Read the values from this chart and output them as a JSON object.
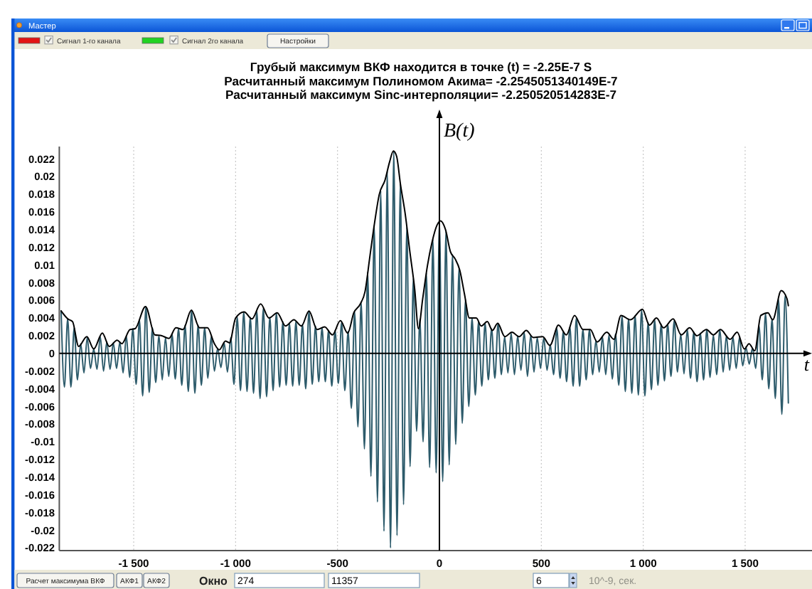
{
  "chart_data": {
    "type": "line",
    "title": "Грубый максимум ВКФ находится в точке (t) = -2.25E-7 S",
    "subtitle": "Расчитанный максимум Полиномом Акима= -2.2545051340149E-7\nРасчитанный максимум Sinc-интерполяции= -2.250520514283E-7",
    "xlabel": "t",
    "ylabel": "B(t)",
    "annotations": [
      "Мастер",
      "Сигнал 1-го канала",
      "Сигнал 2го канала",
      "Настройки",
      "Расчет максимума ВКФ",
      "АКФ1",
      "АКФ2",
      "Окно",
      "274",
      "11357",
      "6",
      "10^-9, сек."
    ],
    "x": [
      -1856,
      -1840,
      -1824,
      -1808,
      -1792,
      -1776,
      -1760,
      -1744,
      -1728,
      -1712,
      -1696,
      -1680,
      -1664,
      -1648,
      -1632,
      -1616,
      -1600,
      -1584,
      -1568,
      -1552,
      -1536,
      -1520,
      -1504,
      -1488,
      -1472,
      -1456,
      -1440,
      -1424,
      -1408,
      -1392,
      -1376,
      -1360,
      -1344,
      -1328,
      -1312,
      -1296,
      -1280,
      -1264,
      -1248,
      -1232,
      -1216,
      -1200,
      -1184,
      -1168,
      -1152,
      -1136,
      -1120,
      -1104,
      -1088,
      -1072,
      -1056,
      -1040,
      -1024,
      -1008,
      -992,
      -976,
      -960,
      -944,
      -928,
      -912,
      -896,
      -880,
      -864,
      -848,
      -832,
      -816,
      -800,
      -784,
      -768,
      -752,
      -736,
      -720,
      -704,
      -688,
      -672,
      -656,
      -640,
      -624,
      -608,
      -592,
      -576,
      -560,
      -544,
      -528,
      -512,
      -496,
      -480,
      -464,
      -448,
      -432,
      -416,
      -400,
      -384,
      -368,
      -352,
      -336,
      -320,
      -304,
      -288,
      -272,
      -256,
      -240,
      -224,
      -208,
      -192,
      -176,
      -160,
      -144,
      -128,
      -112,
      -96,
      -80,
      -64,
      -48,
      -32,
      -16,
      0,
      16,
      32,
      48,
      64,
      80,
      96,
      112,
      128,
      144,
      160,
      176,
      192,
      208,
      224,
      240,
      256,
      272,
      288,
      304,
      320,
      336,
      352,
      368,
      384,
      400,
      416,
      432,
      448,
      464,
      480,
      496,
      512,
      528,
      544,
      560,
      576,
      592,
      608,
      624,
      640,
      656,
      672,
      688,
      704,
      720,
      736,
      752,
      768,
      784,
      800,
      816,
      832,
      848,
      864,
      880,
      896,
      912,
      928,
      944,
      960,
      976,
      992,
      1008,
      1024,
      1040,
      1056,
      1072,
      1088,
      1104,
      1120,
      1136,
      1152,
      1168,
      1184,
      1200,
      1216,
      1232,
      1248,
      1264,
      1280,
      1296,
      1312,
      1328,
      1344,
      1360,
      1376,
      1392,
      1408,
      1424,
      1440,
      1456,
      1472,
      1488,
      1504,
      1520,
      1536,
      1552,
      1568,
      1584,
      1600,
      1616,
      1632,
      1648,
      1664,
      1680,
      1696,
      1712
    ],
    "series": [
      {
        "color": "#2d5b6b",
        "values": [
          0.0048,
          -0.0038,
          0.0039,
          -0.0038,
          0.0029,
          -0.003,
          0.0011,
          -0.0022,
          0.0018,
          -0.0017,
          0.0005,
          -0.0018,
          0.0019,
          -0.002,
          0.0013,
          -0.0018,
          0.0012,
          -0.0017,
          0.0013,
          -0.0022,
          0.002,
          -0.0027,
          0.0028,
          -0.0035,
          0.0038,
          -0.0048,
          0.0053,
          -0.0044,
          0.0029,
          -0.0033,
          0.002,
          -0.003,
          0.0018,
          -0.0026,
          0.0022,
          -0.0029,
          0.0028,
          -0.0036,
          0.0032,
          -0.0043,
          0.0049,
          -0.0045,
          0.0032,
          -0.0036,
          0.0029,
          -0.0028,
          0.0019,
          -0.002,
          0.0006,
          -0.0016,
          0.0012,
          -0.0021,
          0.0018,
          -0.0035,
          0.0041,
          -0.0042,
          0.0047,
          -0.0043,
          0.0041,
          -0.0045,
          0.0048,
          -0.0051,
          0.0051,
          -0.0049,
          0.0041,
          -0.0042,
          0.0046,
          -0.0038,
          0.0036,
          -0.0036,
          0.0034,
          -0.0037,
          0.0036,
          -0.0036,
          0.0033,
          -0.004,
          0.0048,
          -0.0035,
          0.0031,
          -0.0032,
          0.0029,
          -0.0032,
          0.0026,
          -0.0037,
          0.0026,
          -0.0034,
          0.0035,
          -0.0042,
          0.0025,
          -0.0062,
          0.0047,
          -0.0083,
          0.0058,
          -0.0108,
          0.0092,
          -0.0139,
          0.0145,
          -0.0168,
          0.0184,
          -0.0201,
          0.0206,
          -0.022,
          0.0229,
          -0.0206,
          0.0192,
          -0.0171,
          0.0143,
          -0.0128,
          0.0085,
          -0.0088,
          0.0039,
          -0.01,
          0.0091,
          -0.0129,
          0.0129,
          -0.0135,
          0.0149,
          -0.0145,
          0.0138,
          -0.0126,
          0.0112,
          -0.0103,
          0.0096,
          -0.0079,
          0.0061,
          -0.006,
          0.004,
          -0.0047,
          0.0036,
          -0.0037,
          0.0034,
          -0.003,
          0.0028,
          -0.0028,
          0.0034,
          -0.0024,
          0.0019,
          -0.0022,
          0.0023,
          -0.0024,
          0.002,
          -0.0019,
          0.0024,
          -0.0026,
          0.0021,
          -0.0021,
          0.0018,
          -0.0017,
          0.0018,
          -0.0019,
          0.001,
          -0.0024,
          0.0028,
          -0.0028,
          0.0025,
          -0.0032,
          0.003,
          -0.0037,
          0.004,
          -0.0037,
          0.0027,
          -0.003,
          0.0027,
          -0.0024,
          0.0015,
          -0.0021,
          0.0019,
          -0.0024,
          0.0021,
          -0.0029,
          0.0022,
          -0.0036,
          0.0042,
          -0.0043,
          0.0039,
          -0.0045,
          0.0043,
          -0.0047,
          0.0049,
          -0.0048,
          0.0035,
          -0.0041,
          0.0038,
          -0.0036,
          0.0033,
          -0.0031,
          0.0033,
          -0.0026,
          0.0037,
          -0.0021,
          0.0022,
          -0.0023,
          0.0027,
          -0.0028,
          0.0024,
          -0.0032,
          0.0023,
          -0.003,
          0.0027,
          -0.0027,
          0.0021,
          -0.0024,
          0.0027,
          -0.0021,
          0.002,
          -0.0019,
          0.0019,
          -0.0017,
          0.0018,
          -0.0014,
          0.0007,
          -0.0012,
          0.0006,
          -0.0017,
          0.0031,
          -0.003,
          0.0045,
          -0.004,
          0.0039,
          -0.0051,
          0.0061,
          -0.0069,
          0.0065,
          -0.0056
        ]
      },
      {
        "color": "#000000",
        "x": [
          -1856,
          -1823,
          -1800,
          -1770,
          -1730,
          -1696,
          -1654,
          -1620,
          -1581,
          -1558,
          -1518,
          -1493,
          -1442,
          -1396,
          -1362,
          -1327,
          -1293,
          -1258,
          -1217,
          -1177,
          -1138,
          -1104,
          -1080,
          -1050,
          -1030,
          -1000,
          -958,
          -920,
          -877,
          -836,
          -796,
          -755,
          -714,
          -677,
          -640,
          -600,
          -563,
          -525,
          -486,
          -450,
          -420,
          -388,
          -365,
          -341,
          -318,
          -295,
          -267,
          -244,
          -226,
          -210,
          -191,
          -168,
          -145,
          -121,
          -103,
          -82,
          -59,
          -36,
          -12,
          5,
          30,
          54,
          77,
          100,
          123,
          147,
          181,
          205,
          235,
          260,
          286,
          321,
          356,
          391,
          426,
          461,
          507,
          542,
          584,
          623,
          663,
          705,
          740,
          774,
          821,
          856,
          891,
          937,
          996,
          1030,
          1065,
          1100,
          1147,
          1186,
          1228,
          1263,
          1310,
          1344,
          1379,
          1426,
          1461,
          1496,
          1519,
          1547,
          1577,
          1612,
          1635,
          1677,
          1705,
          1712
        ],
        "values": [
          0.0048,
          0.0039,
          0.0036,
          0.0008,
          0.0019,
          0.0005,
          0.0023,
          0.0008,
          0.0015,
          0.0011,
          0.0027,
          0.0028,
          0.0053,
          0.0021,
          0.002,
          0.0017,
          0.0029,
          0.0027,
          0.0049,
          0.0029,
          0.0029,
          0.0011,
          0.0004,
          0.0014,
          0.0012,
          0.004,
          0.0047,
          0.0039,
          0.0056,
          0.004,
          0.0046,
          0.0031,
          0.0038,
          0.0031,
          0.0048,
          0.0027,
          0.003,
          0.0021,
          0.0037,
          0.0023,
          0.0046,
          0.0056,
          0.007,
          0.011,
          0.0148,
          0.018,
          0.0196,
          0.0217,
          0.0229,
          0.0223,
          0.0191,
          0.0158,
          0.0115,
          0.0072,
          0.0028,
          0.0062,
          0.0099,
          0.0126,
          0.0145,
          0.015,
          0.014,
          0.0115,
          0.0107,
          0.0094,
          0.0067,
          0.004,
          0.004,
          0.0031,
          0.0036,
          0.0026,
          0.0034,
          0.0019,
          0.0024,
          0.0019,
          0.0026,
          0.0018,
          0.0019,
          0.0009,
          0.0032,
          0.0021,
          0.0043,
          0.0027,
          0.0027,
          0.0013,
          0.0024,
          0.0016,
          0.0043,
          0.0038,
          0.005,
          0.0032,
          0.004,
          0.0029,
          0.0039,
          0.0021,
          0.0029,
          0.002,
          0.0027,
          0.0021,
          0.0027,
          0.0016,
          0.0024,
          0.0005,
          0.0011,
          0.0003,
          0.0043,
          0.0046,
          0.0038,
          0.0071,
          0.0062,
          0.0054
        ]
      }
    ],
    "xlim": [
      -1865,
      1828
    ],
    "ylim": [
      -0.0223,
      0.0234
    ],
    "xticks": [
      {
        "value": -1500,
        "label": "-1 500"
      },
      {
        "value": -1000,
        "label": "-1 000"
      },
      -500,
      0,
      500,
      {
        "value": 1000,
        "label": "1 000"
      },
      {
        "value": 1500,
        "label": "1 500"
      }
    ],
    "yticks": [
      -0.022,
      -0.02,
      -0.018,
      -0.016,
      -0.014,
      -0.012,
      -0.01,
      -0.008,
      -0.006,
      -0.004,
      -0.002,
      0,
      0.002,
      0.004,
      0.006,
      0.008,
      0.01,
      0.012,
      0.014,
      0.016,
      0.018,
      0.02,
      0.022
    ],
    "ref_lines": [
      {
        "axis": "y",
        "value": 0,
        "color": "#000000"
      }
    ],
    "grid": "x"
  }
}
